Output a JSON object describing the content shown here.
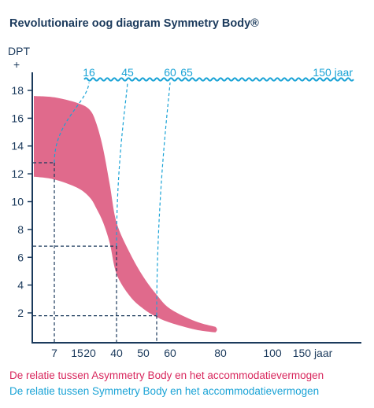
{
  "title": "Revolutionaire oog diagram Symmetry Body®",
  "colors": {
    "axis": "#1b3a5c",
    "asymmetry": "#e06a8c",
    "asymmetry_text": "#d8275d",
    "symmetry": "#1aa3d6"
  },
  "chart_data": {
    "type": "area",
    "ylabel": "DPT",
    "ylabel_plus": "+",
    "y_ticks": [
      2,
      4,
      6,
      8,
      10,
      12,
      14,
      16,
      18
    ],
    "ylim": [
      0,
      19.5
    ],
    "x_ticks": [
      "7",
      "15",
      "20",
      "40",
      "50",
      "60",
      "80",
      "100",
      "150 jaar"
    ],
    "x_tick_values": [
      7,
      15,
      20,
      40,
      50,
      60,
      80,
      100,
      150
    ],
    "grid": false,
    "series": [
      {
        "name": "De relatie tussen Asymmetry Body en het accommodatievermogen",
        "style": "filled band",
        "upper": [
          [
            0,
            17.6
          ],
          [
            7,
            17.5
          ],
          [
            15,
            17.1
          ],
          [
            20,
            16.6
          ],
          [
            25,
            15.6
          ],
          [
            30,
            13.8
          ],
          [
            35,
            11.2
          ],
          [
            40,
            8.5
          ],
          [
            45,
            6.3
          ],
          [
            50,
            4.6
          ],
          [
            55,
            3.3
          ],
          [
            60,
            2.3
          ],
          [
            70,
            1.4
          ],
          [
            78,
            1.0
          ]
        ],
        "lower": [
          [
            0,
            11.8
          ],
          [
            7,
            11.6
          ],
          [
            15,
            11.0
          ],
          [
            20,
            10.3
          ],
          [
            25,
            9.5
          ],
          [
            30,
            8.5
          ],
          [
            35,
            7.0
          ],
          [
            40,
            4.8
          ],
          [
            45,
            3.2
          ],
          [
            50,
            2.3
          ],
          [
            55,
            1.7
          ],
          [
            60,
            1.3
          ],
          [
            70,
            0.8
          ],
          [
            78,
            0.6
          ]
        ]
      },
      {
        "name": "De relatie tussen Symmetry Body en het accommodatievermogen",
        "style": "wavy line",
        "level_label": "150 jaar",
        "age_labels": [
          "16",
          "45",
          "60",
          "65"
        ],
        "reference_points": [
          [
            7,
            12.8
          ],
          [
            40,
            6.8
          ],
          [
            55,
            1.8
          ]
        ]
      }
    ],
    "legend_position": "bottom"
  }
}
